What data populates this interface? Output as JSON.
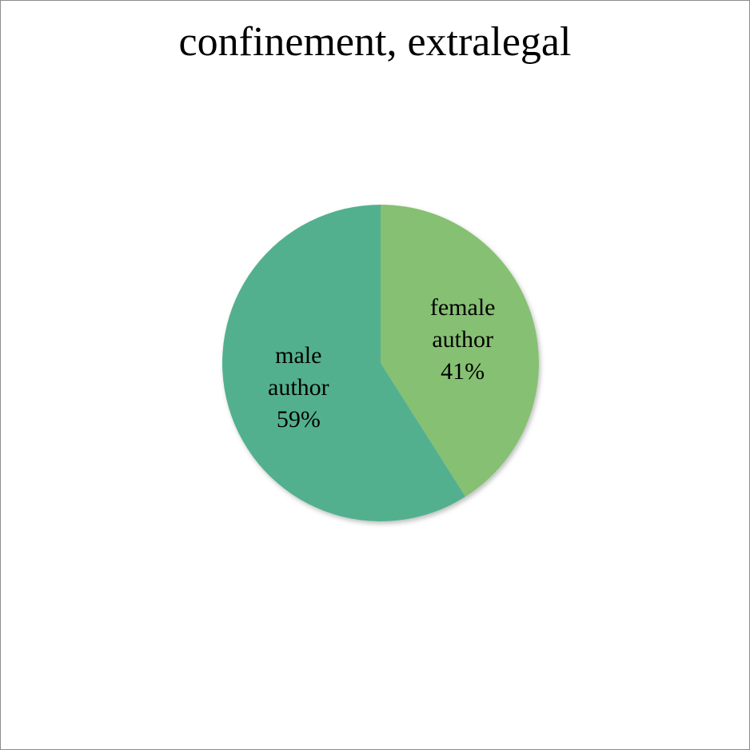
{
  "chart_data": {
    "type": "pie",
    "title": "confinement, extralegal",
    "slices": [
      {
        "label_lines": [
          "female",
          "author"
        ],
        "percent_label": "41%",
        "value": 41,
        "color": "#86C073"
      },
      {
        "label_lines": [
          "male",
          "author"
        ],
        "percent_label": "59%",
        "value": 59,
        "color": "#53B08F"
      }
    ],
    "legend": "none",
    "data_labels": "inside"
  }
}
